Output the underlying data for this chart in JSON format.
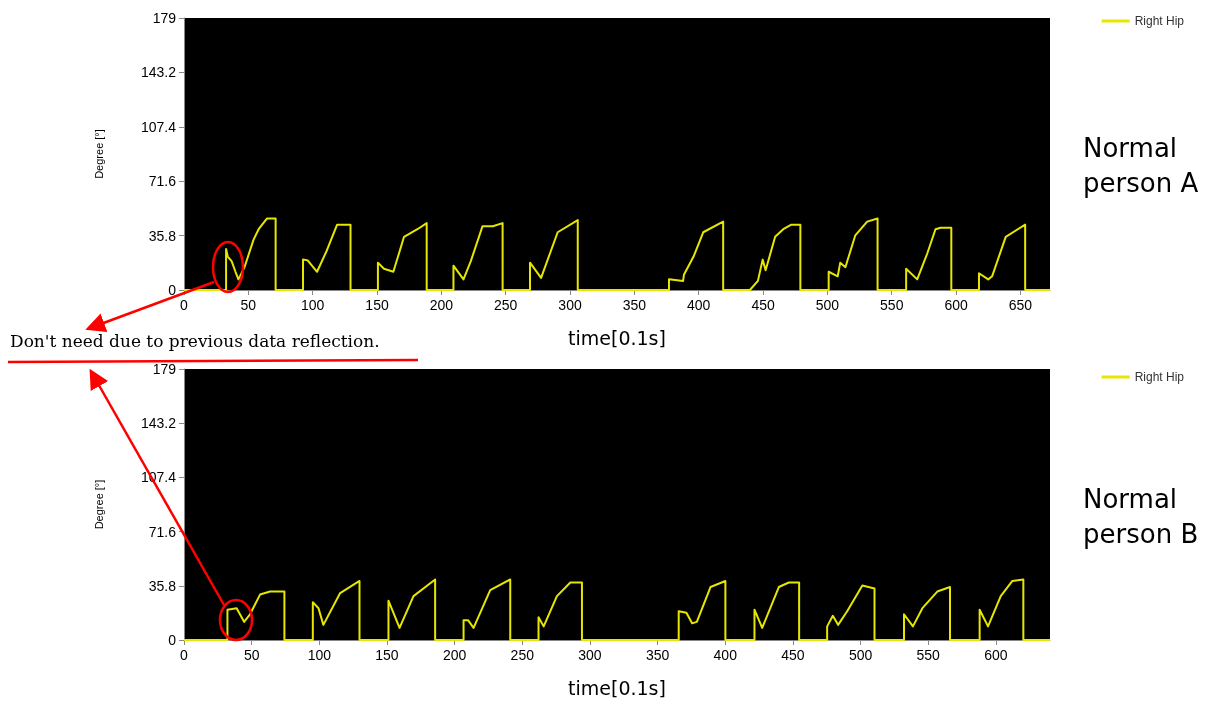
{
  "chart_data": [
    {
      "type": "line",
      "xlabel": "time[0.1s]",
      "ylabel": "Degree [°]",
      "annotations": [
        "Normal person A",
        "Don't need due to previous data reflection."
      ],
      "legend": "top right",
      "grid": false,
      "marker": "none",
      "line_style": "solid",
      "xlim": [
        0,
        673
      ],
      "xticks": [
        0,
        50,
        100,
        150,
        200,
        250,
        300,
        350,
        400,
        450,
        500,
        550,
        600,
        650
      ],
      "ylim": [
        0,
        179
      ],
      "yticks": [
        0,
        35.8,
        71.6,
        107.4,
        143.2,
        179
      ],
      "series": [
        {
          "name": "Right Hip",
          "color": "#e6e600",
          "x": [
            0,
            32.7,
            32.7,
            34,
            37,
            40,
            42.3,
            47,
            54,
            58,
            64.4,
            71.2,
            71.2,
            92.5,
            92.5,
            96.1,
            103.4,
            111,
            119,
            129.4,
            129.4,
            150.7,
            150.7,
            155.4,
            162.7,
            171,
            181.4,
            188.6,
            188.6,
            209.4,
            209.4,
            217.2,
            222.9,
            232,
            240,
            247.6,
            247.6,
            268.9,
            268.9,
            277.5,
            290.4,
            306,
            306,
            376.9,
            376.9,
            387.9,
            388.5,
            396,
            403.5,
            419,
            419,
            439.8,
            446,
            449.7,
            452,
            459.4,
            465.7,
            472,
            479,
            479,
            501,
            501,
            508,
            510,
            514,
            521.7,
            530.9,
            539,
            539,
            561.2,
            561.2,
            569.8,
            577.6,
            584,
            588,
            596.3,
            596.3,
            617.8,
            617.8,
            625,
            628,
            638.6,
            653.7,
            653.7,
            673
          ],
          "values": [
            0,
            0,
            27,
            22,
            19,
            12,
            7,
            15,
            33,
            40,
            47,
            47,
            0,
            0,
            20,
            19.5,
            12,
            26,
            43,
            43,
            0,
            0,
            18,
            14,
            12,
            35,
            40,
            44,
            0,
            0,
            16,
            7,
            19,
            42,
            42,
            44,
            0,
            0,
            18,
            8,
            38,
            46,
            0,
            0,
            7,
            6,
            10,
            22,
            38,
            45,
            0,
            0,
            6,
            20,
            13,
            35,
            40,
            43,
            43,
            0,
            0,
            12,
            9,
            18,
            15,
            36,
            45,
            47,
            0,
            0,
            14,
            7,
            24,
            40,
            41,
            41,
            0,
            0,
            11,
            7,
            9,
            35,
            43,
            0,
            0
          ]
        }
      ]
    },
    {
      "type": "line",
      "xlabel": "time[0.1s]",
      "ylabel": "Degree [°]",
      "annotations": [
        "Normal person B"
      ],
      "legend": "top right",
      "grid": false,
      "marker": "none",
      "line_style": "solid",
      "xlim": [
        0,
        640
      ],
      "xticks": [
        0,
        50,
        100,
        150,
        200,
        250,
        300,
        350,
        400,
        450,
        500,
        550,
        600
      ],
      "ylim": [
        0,
        179
      ],
      "yticks": [
        0,
        35.8,
        71.6,
        107.4,
        143.2,
        179
      ],
      "series": [
        {
          "name": "Right Hip",
          "color": "#e6e600",
          "x": [
            0,
            32.1,
            32.1,
            38.9,
            44.4,
            48.8,
            56.2,
            63.6,
            74.2,
            74.2,
            95.2,
            95.2,
            99.4,
            103,
            115.4,
            129.7,
            129.7,
            151.1,
            151.1,
            159.3,
            169.6,
            185.6,
            185.6,
            206.6,
            206.6,
            210,
            214,
            226.3,
            241.1,
            241.1,
            262,
            262,
            265.8,
            275.6,
            285.5,
            294.1,
            294.1,
            365.6,
            365.6,
            371.3,
            375.5,
            379,
            389.1,
            400.1,
            400.1,
            421.6,
            421.6,
            427.3,
            439.6,
            447,
            454.6,
            454.6,
            475.3,
            475.3,
            479.5,
            483.4,
            490.1,
            501.3,
            510.3,
            510.3,
            532.1,
            532.1,
            538.7,
            545.7,
            556.7,
            566.1,
            566.1,
            588,
            588,
            594.2,
            603.6,
            612.2,
            620.3,
            620.3,
            640
          ],
          "values": [
            0,
            0,
            20,
            21,
            12,
            17,
            30,
            32,
            32,
            0,
            0,
            25,
            21,
            10,
            31,
            39,
            0,
            0,
            26,
            8,
            29,
            40,
            0,
            0,
            13,
            13,
            8,
            33,
            40,
            0,
            0,
            15,
            9,
            29,
            38,
            38,
            0,
            0,
            19,
            18,
            11,
            12,
            35,
            39,
            0,
            0,
            20,
            8,
            35,
            38,
            38,
            0,
            0,
            9,
            16,
            10,
            19,
            36,
            34,
            0,
            0,
            17,
            9,
            21,
            32,
            35,
            0,
            0,
            20,
            9,
            29,
            39,
            40,
            0,
            0
          ]
        }
      ]
    }
  ]
}
